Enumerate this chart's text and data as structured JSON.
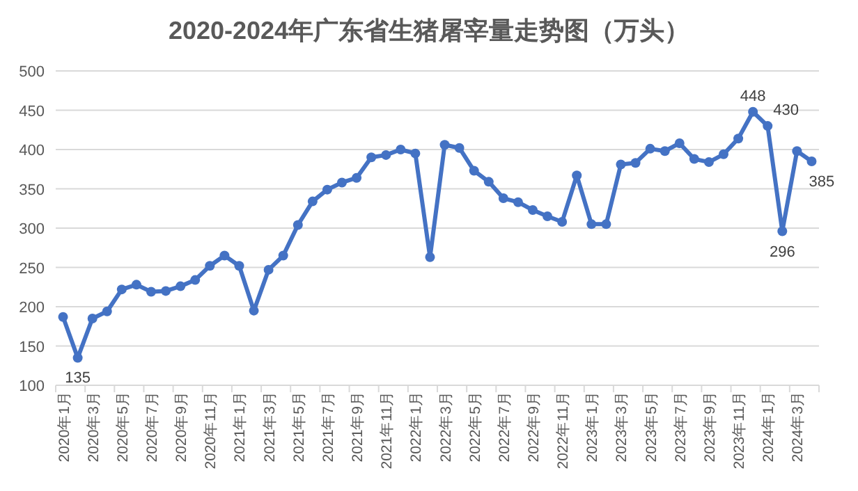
{
  "chart_data": {
    "type": "line",
    "title": "2020-2024年广东省生猪屠宰量走势图（万头）",
    "categories": [
      "2020年1月",
      null,
      "2020年3月",
      null,
      "2020年5月",
      null,
      "2020年7月",
      null,
      "2020年9月",
      null,
      "2020年11月",
      null,
      "2021年1月",
      null,
      "2021年3月",
      null,
      "2021年5月",
      null,
      "2021年7月",
      null,
      "2021年9月",
      null,
      "2021年11月",
      null,
      "2022年1月",
      null,
      "2022年3月",
      null,
      "2022年5月",
      null,
      "2022年7月",
      null,
      "2022年9月",
      null,
      "2022年11月",
      null,
      "2023年1月",
      null,
      "2023年3月",
      null,
      "2023年5月",
      null,
      "2023年7月",
      null,
      "2023年9月",
      null,
      "2023年11月",
      null,
      "2024年1月",
      null,
      "2024年3月",
      null
    ],
    "series": [
      {
        "color": "#4472c4",
        "values": [
          187,
          135,
          185,
          194,
          222,
          228,
          219,
          220,
          226,
          234,
          252,
          265,
          252,
          195,
          247,
          265,
          304,
          334,
          349,
          358,
          364,
          390,
          393,
          400,
          395,
          263,
          406,
          402,
          373,
          359,
          338,
          333,
          323,
          315,
          308,
          367,
          305,
          305,
          381,
          383,
          401,
          398,
          408,
          388,
          384,
          394,
          414,
          448,
          430,
          296,
          398,
          385
        ],
        "value_labels": [
          null,
          "135",
          null,
          null,
          null,
          null,
          null,
          null,
          null,
          null,
          null,
          null,
          null,
          null,
          null,
          null,
          null,
          null,
          null,
          null,
          null,
          null,
          null,
          null,
          null,
          null,
          null,
          null,
          null,
          null,
          null,
          null,
          null,
          null,
          null,
          null,
          null,
          null,
          null,
          null,
          null,
          null,
          null,
          null,
          null,
          null,
          null,
          "448",
          "430",
          "296",
          null,
          "385"
        ]
      }
    ],
    "ylim": [
      100,
      500
    ],
    "yticks": [
      100,
      150,
      200,
      250,
      300,
      350,
      400,
      450,
      500
    ],
    "grid": "y",
    "marker": "circle",
    "line_style": "solid"
  }
}
